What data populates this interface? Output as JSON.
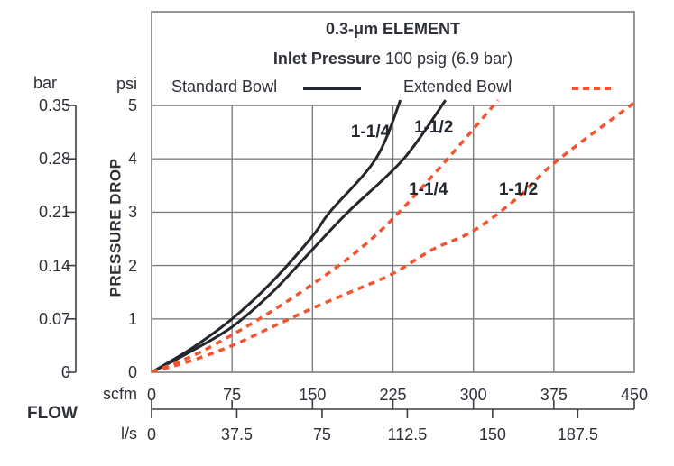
{
  "title": {
    "line1": "0.3-μm ELEMENT",
    "line2_bold": "Inlet Pressure",
    "line2_rest": " 100 psig (6.9 bar)"
  },
  "legend": {
    "standard_label": "Standard Bowl",
    "extended_label": "Extended Bowl"
  },
  "axes": {
    "pressure": {
      "axis_label": "PRESSURE DROP",
      "bar_header": "bar",
      "psi_header": "psi",
      "bar_ticks": [
        "0.35",
        "0.28",
        "0.21",
        "0.14",
        "0.07",
        "0"
      ],
      "psi_ticks": [
        "5",
        "4",
        "3",
        "2",
        "1",
        "0"
      ]
    },
    "flow": {
      "label": "FLOW",
      "scfm_header": "scfm",
      "ls_header": "l/s",
      "scfm_ticks": [
        "0",
        "75",
        "150",
        "225",
        "300",
        "375",
        "450"
      ],
      "ls_ticks": [
        "0",
        "37.5",
        "75",
        "112.5",
        "150",
        "187.5"
      ],
      "scfm_per_ls": 2.1189
    }
  },
  "colors": {
    "curve_black": "#24272c",
    "curve_red": "#f2542f",
    "grid": "#7d7d7d",
    "text": "#2d3137"
  },
  "chart_data": {
    "type": "line",
    "title": "0.3-μm ELEMENT",
    "subtitle": "Inlet Pressure 100 psig (6.9 bar)",
    "xlabel": "FLOW",
    "ylabel": "PRESSURE DROP",
    "grid": true,
    "legend_position": "top",
    "xlim_scfm": [
      0,
      450
    ],
    "ylim_psi": [
      0,
      5
    ],
    "x_units": [
      {
        "name": "scfm",
        "ticks": [
          0,
          75,
          150,
          225,
          300,
          375,
          450
        ]
      },
      {
        "name": "l/s",
        "ticks": [
          0,
          37.5,
          75,
          112.5,
          150,
          187.5
        ],
        "scfm_per_unit": 2.1189
      }
    ],
    "y_units": [
      {
        "name": "psi",
        "ticks": [
          5,
          4,
          3,
          2,
          1,
          0
        ]
      },
      {
        "name": "bar",
        "ticks": [
          0.35,
          0.28,
          0.21,
          0.14,
          0.07,
          0
        ]
      }
    ],
    "series": [
      {
        "name": "Standard Bowl 1-1/4",
        "bowl": "Standard Bowl",
        "size": "1-1/4",
        "style": "solid",
        "color_key": "curve_black",
        "points_scfm_psi": [
          [
            0,
            0
          ],
          [
            37.5,
            0.45
          ],
          [
            75,
            1.0
          ],
          [
            112.5,
            1.7
          ],
          [
            150,
            2.55
          ],
          [
            166,
            3.0
          ],
          [
            209,
            4.0
          ],
          [
            232,
            5.1
          ]
        ]
      },
      {
        "name": "Standard Bowl 1-1/2",
        "bowl": "Standard Bowl",
        "size": "1-1/2",
        "style": "solid",
        "color_key": "curve_black",
        "points_scfm_psi": [
          [
            0,
            0
          ],
          [
            37.5,
            0.4
          ],
          [
            75,
            0.85
          ],
          [
            112.5,
            1.5
          ],
          [
            150,
            2.3
          ],
          [
            183,
            3.0
          ],
          [
            235,
            4.0
          ],
          [
            274,
            5.1
          ]
        ]
      },
      {
        "name": "Extended Bowl 1-1/4",
        "bowl": "Extended Bowl",
        "size": "1-1/4",
        "style": "dashed",
        "color_key": "curve_red",
        "points_scfm_psi": [
          [
            0,
            0
          ],
          [
            37.5,
            0.3
          ],
          [
            75,
            0.7
          ],
          [
            112.5,
            1.15
          ],
          [
            150,
            1.65
          ],
          [
            187.5,
            2.2
          ],
          [
            225,
            2.88
          ],
          [
            276,
            4.0
          ],
          [
            323,
            5.1
          ]
        ]
      },
      {
        "name": "Extended Bowl 1-1/2",
        "bowl": "Extended Bowl",
        "size": "1-1/2",
        "style": "dashed",
        "color_key": "curve_red",
        "points_scfm_psi": [
          [
            0,
            0
          ],
          [
            37.5,
            0.22
          ],
          [
            75,
            0.5
          ],
          [
            112.5,
            0.85
          ],
          [
            150,
            1.2
          ],
          [
            187.5,
            1.52
          ],
          [
            225,
            1.85
          ],
          [
            262,
            2.3
          ],
          [
            300,
            2.65
          ],
          [
            340,
            3.25
          ],
          [
            377,
            3.95
          ],
          [
            450,
            5.05
          ]
        ]
      }
    ],
    "annotations": [
      {
        "text": "1-1/4",
        "series": "Standard Bowl 1-1/4",
        "scfm": 204,
        "psi": 4.49
      },
      {
        "text": "1-1/2",
        "series": "Standard Bowl 1-1/2",
        "scfm": 263,
        "psi": 4.58
      },
      {
        "text": "1-1/4",
        "series": "Extended Bowl 1-1/4",
        "scfm": 258,
        "psi": 3.41
      },
      {
        "text": "1-1/2",
        "series": "Extended Bowl 1-1/2",
        "scfm": 342,
        "psi": 3.41
      }
    ]
  }
}
